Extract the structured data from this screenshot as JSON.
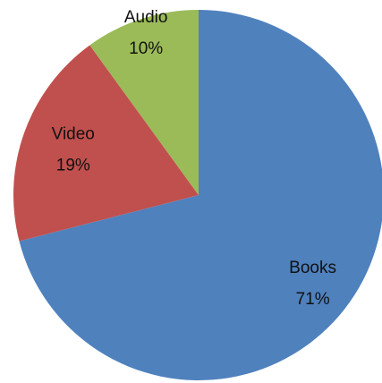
{
  "chart_data": {
    "type": "pie",
    "categories": [
      "Books",
      "Video",
      "Audio"
    ],
    "values": [
      71,
      19,
      10
    ],
    "value_labels": [
      "71%",
      "19%",
      "10%"
    ],
    "colors": [
      "#4f81bd",
      "#c0504d",
      "#9bbb59"
    ]
  }
}
